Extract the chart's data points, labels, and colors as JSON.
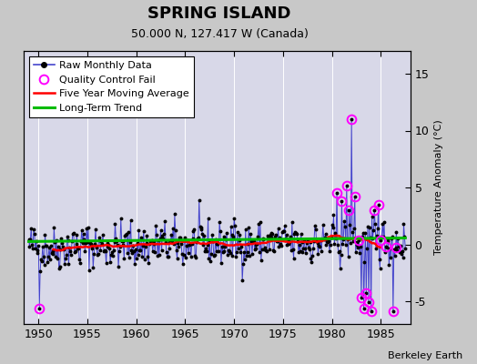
{
  "title": "SPRING ISLAND",
  "subtitle": "50.000 N, 127.417 W (Canada)",
  "ylabel": "Temperature Anomaly (°C)",
  "attribution": "Berkeley Earth",
  "xlim": [
    1948.5,
    1988.0
  ],
  "ylim": [
    -7,
    17
  ],
  "yticks": [
    -5,
    0,
    5,
    10,
    15
  ],
  "xticks": [
    1950,
    1955,
    1960,
    1965,
    1970,
    1975,
    1980,
    1985
  ],
  "bg_color": "#c8c8c8",
  "plot_bg_color": "#d8d8e8",
  "grid_color": "#ffffff",
  "raw_color": "#4444cc",
  "dot_color": "#000000",
  "qc_color": "#ff00ff",
  "ma_color": "#ff0000",
  "trend_color": "#00bb00",
  "legend_labels": [
    "Raw Monthly Data",
    "Quality Control Fail",
    "Five Year Moving Average",
    "Long-Term Trend"
  ],
  "seed": 42,
  "title_fontsize": 13,
  "subtitle_fontsize": 9,
  "tick_fontsize": 9,
  "ylabel_fontsize": 8,
  "legend_fontsize": 8,
  "attr_fontsize": 8
}
